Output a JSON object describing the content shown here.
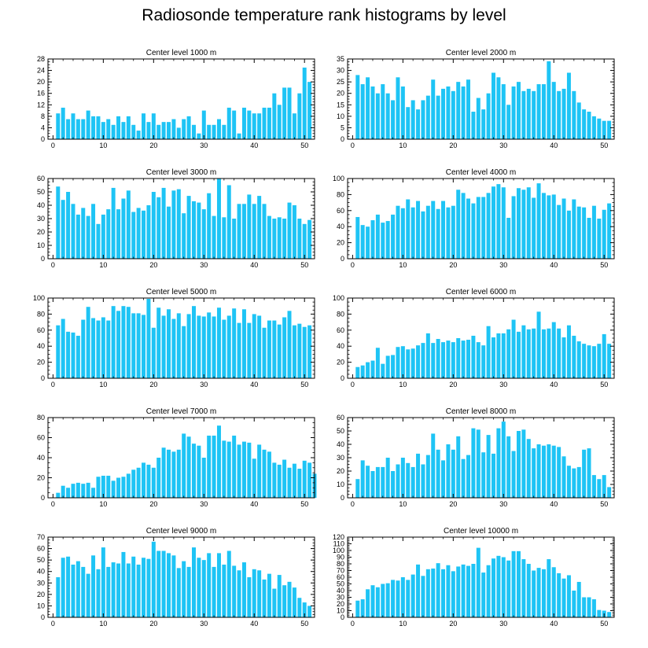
{
  "title": "Radiosonde temperature rank histograms by level",
  "colors": {
    "bar": "#1ec4f5",
    "axis": "#000000"
  },
  "chart_data": [
    {
      "type": "bar",
      "title": "Center level 1000 m",
      "xlabel": "",
      "ylabel": "",
      "xlim": [
        -1,
        52
      ],
      "ylim": [
        0,
        28
      ],
      "xticks": [
        0,
        10,
        20,
        30,
        40,
        50
      ],
      "yticks": [
        0,
        4,
        8,
        12,
        16,
        20,
        24,
        28
      ],
      "values": [
        9,
        11,
        7,
        9,
        7,
        7,
        10,
        8,
        8,
        6,
        7,
        5,
        8,
        6,
        8,
        5,
        3,
        9,
        6,
        9,
        5,
        6,
        6,
        7,
        4,
        7,
        8,
        5,
        2,
        10,
        5,
        5,
        7,
        5,
        11,
        10,
        2,
        11,
        10,
        9,
        9,
        11,
        11,
        16,
        12,
        18,
        18,
        9,
        16,
        25,
        20
      ]
    },
    {
      "type": "bar",
      "title": "Center level 2000 m",
      "xlabel": "",
      "ylabel": "",
      "xlim": [
        -1,
        52
      ],
      "ylim": [
        0,
        35
      ],
      "xticks": [
        0,
        10,
        20,
        30,
        40,
        50
      ],
      "yticks": [
        0,
        5,
        10,
        15,
        20,
        25,
        30,
        35
      ],
      "values": [
        28,
        24,
        27,
        23,
        20,
        24,
        20,
        17,
        27,
        23,
        14,
        17,
        13,
        17,
        19,
        26,
        19,
        22,
        23,
        21,
        25,
        23,
        26,
        12,
        18,
        13,
        20,
        29,
        27,
        24,
        15,
        23,
        25,
        21,
        22,
        21,
        24,
        24,
        34,
        25,
        21,
        22,
        29,
        21,
        16,
        13,
        12,
        10,
        9,
        8,
        8
      ]
    },
    {
      "type": "bar",
      "title": "Center level 3000 m",
      "xlabel": "",
      "ylabel": "",
      "xlim": [
        -1,
        52
      ],
      "ylim": [
        0,
        60
      ],
      "xticks": [
        0,
        10,
        20,
        30,
        40,
        50
      ],
      "yticks": [
        0,
        10,
        20,
        30,
        40,
        50,
        60
      ],
      "values": [
        54,
        44,
        50,
        41,
        33,
        38,
        32,
        41,
        26,
        33,
        37,
        53,
        37,
        45,
        51,
        35,
        38,
        36,
        40,
        50,
        46,
        53,
        39,
        51,
        52,
        34,
        47,
        43,
        42,
        37,
        49,
        32,
        60,
        31,
        55,
        30,
        41,
        41,
        48,
        41,
        47,
        41,
        32,
        30,
        31,
        30,
        42,
        40,
        30,
        26,
        29
      ]
    },
    {
      "type": "bar",
      "title": "Center level 4000 m",
      "xlabel": "",
      "ylabel": "",
      "xlim": [
        -1,
        52
      ],
      "ylim": [
        0,
        100
      ],
      "xticks": [
        0,
        10,
        20,
        30,
        40,
        50
      ],
      "yticks": [
        0,
        20,
        40,
        60,
        80,
        100
      ],
      "values": [
        52,
        42,
        40,
        48,
        55,
        45,
        47,
        55,
        66,
        63,
        74,
        64,
        72,
        59,
        66,
        72,
        62,
        72,
        64,
        66,
        86,
        82,
        75,
        69,
        77,
        77,
        82,
        90,
        93,
        89,
        51,
        78,
        88,
        86,
        89,
        76,
        94,
        82,
        79,
        80,
        67,
        75,
        60,
        74,
        65,
        64,
        51,
        66,
        50,
        61,
        69
      ]
    },
    {
      "type": "bar",
      "title": "Center level 5000 m",
      "xlabel": "",
      "ylabel": "",
      "xlim": [
        -1,
        52
      ],
      "ylim": [
        0,
        100
      ],
      "xticks": [
        0,
        10,
        20,
        30,
        40,
        50
      ],
      "yticks": [
        0,
        20,
        40,
        60,
        80,
        100
      ],
      "values": [
        66,
        74,
        58,
        57,
        53,
        73,
        89,
        75,
        72,
        76,
        72,
        90,
        84,
        90,
        89,
        81,
        81,
        79,
        99,
        63,
        88,
        78,
        86,
        74,
        81,
        65,
        80,
        90,
        78,
        77,
        82,
        77,
        88,
        73,
        78,
        87,
        69,
        86,
        69,
        80,
        78,
        63,
        72,
        72,
        67,
        76,
        84,
        66,
        68,
        64,
        66
      ]
    },
    {
      "type": "bar",
      "title": "Center level 6000 m",
      "xlabel": "",
      "ylabel": "",
      "xlim": [
        -1,
        52
      ],
      "ylim": [
        0,
        100
      ],
      "xticks": [
        0,
        10,
        20,
        30,
        40,
        50
      ],
      "yticks": [
        0,
        20,
        40,
        60,
        80,
        100
      ],
      "values": [
        14,
        16,
        20,
        22,
        38,
        18,
        28,
        29,
        39,
        40,
        36,
        37,
        41,
        44,
        56,
        44,
        49,
        45,
        47,
        45,
        50,
        47,
        48,
        53,
        45,
        41,
        65,
        51,
        56,
        56,
        61,
        73,
        58,
        66,
        61,
        62,
        83,
        61,
        62,
        70,
        62,
        51,
        66,
        53,
        46,
        43,
        41,
        40,
        43,
        55,
        43
      ]
    },
    {
      "type": "bar",
      "title": "Center level 7000 m",
      "xlabel": "",
      "ylabel": "",
      "xlim": [
        -1,
        52
      ],
      "ylim": [
        0,
        80
      ],
      "xticks": [
        0,
        10,
        20,
        30,
        40,
        50
      ],
      "yticks": [
        0,
        20,
        40,
        60,
        80
      ],
      "values": [
        5,
        12,
        10,
        14,
        15,
        14,
        15,
        10,
        21,
        22,
        22,
        17,
        20,
        21,
        24,
        28,
        30,
        35,
        33,
        30,
        40,
        50,
        48,
        46,
        48,
        64,
        61,
        54,
        52,
        40,
        62,
        62,
        72,
        57,
        56,
        62,
        53,
        56,
        55,
        39,
        53,
        48,
        46,
        35,
        33,
        38,
        30,
        34,
        29,
        37,
        35,
        24
      ]
    },
    {
      "type": "bar",
      "title": "Center level 8000 m",
      "xlabel": "",
      "ylabel": "",
      "xlim": [
        -1,
        52
      ],
      "ylim": [
        0,
        60
      ],
      "xticks": [
        0,
        10,
        20,
        30,
        40,
        50
      ],
      "yticks": [
        0,
        10,
        20,
        30,
        40,
        50,
        60
      ],
      "values": [
        14,
        28,
        24,
        20,
        23,
        23,
        30,
        20,
        25,
        30,
        26,
        23,
        33,
        25,
        32,
        48,
        36,
        28,
        40,
        36,
        46,
        29,
        32,
        52,
        51,
        34,
        47,
        33,
        52,
        57,
        46,
        35,
        50,
        51,
        44,
        37,
        40,
        39,
        40,
        39,
        38,
        31,
        24,
        22,
        23,
        36,
        37,
        17,
        14,
        17,
        8
      ]
    },
    {
      "type": "bar",
      "title": "Center level 9000 m",
      "xlabel": "",
      "ylabel": "",
      "xlim": [
        -1,
        52
      ],
      "ylim": [
        0,
        70
      ],
      "xticks": [
        0,
        10,
        20,
        30,
        40,
        50
      ],
      "yticks": [
        0,
        10,
        20,
        30,
        40,
        50,
        60,
        70
      ],
      "values": [
        35,
        52,
        53,
        46,
        49,
        44,
        38,
        54,
        42,
        61,
        44,
        48,
        47,
        57,
        47,
        53,
        46,
        52,
        51,
        66,
        58,
        58,
        56,
        54,
        43,
        49,
        44,
        61,
        52,
        50,
        56,
        44,
        56,
        46,
        58,
        45,
        41,
        48,
        35,
        42,
        41,
        33,
        38,
        25,
        37,
        28,
        31,
        26,
        17,
        13,
        10
      ]
    },
    {
      "type": "bar",
      "title": "Center level 10000 m",
      "xlabel": "",
      "ylabel": "",
      "xlim": [
        -1,
        52
      ],
      "ylim": [
        0,
        120
      ],
      "xticks": [
        0,
        10,
        20,
        30,
        40,
        50
      ],
      "yticks": [
        0,
        10,
        20,
        30,
        40,
        50,
        60,
        70,
        80,
        90,
        100,
        110,
        120
      ],
      "values": [
        25,
        27,
        42,
        48,
        45,
        50,
        51,
        56,
        55,
        60,
        56,
        64,
        79,
        62,
        72,
        73,
        81,
        72,
        78,
        69,
        76,
        79,
        77,
        80,
        104,
        67,
        78,
        88,
        92,
        90,
        85,
        99,
        99,
        87,
        80,
        70,
        74,
        72,
        87,
        75,
        66,
        58,
        63,
        40,
        53,
        30,
        30,
        27,
        11,
        10,
        8
      ]
    }
  ]
}
